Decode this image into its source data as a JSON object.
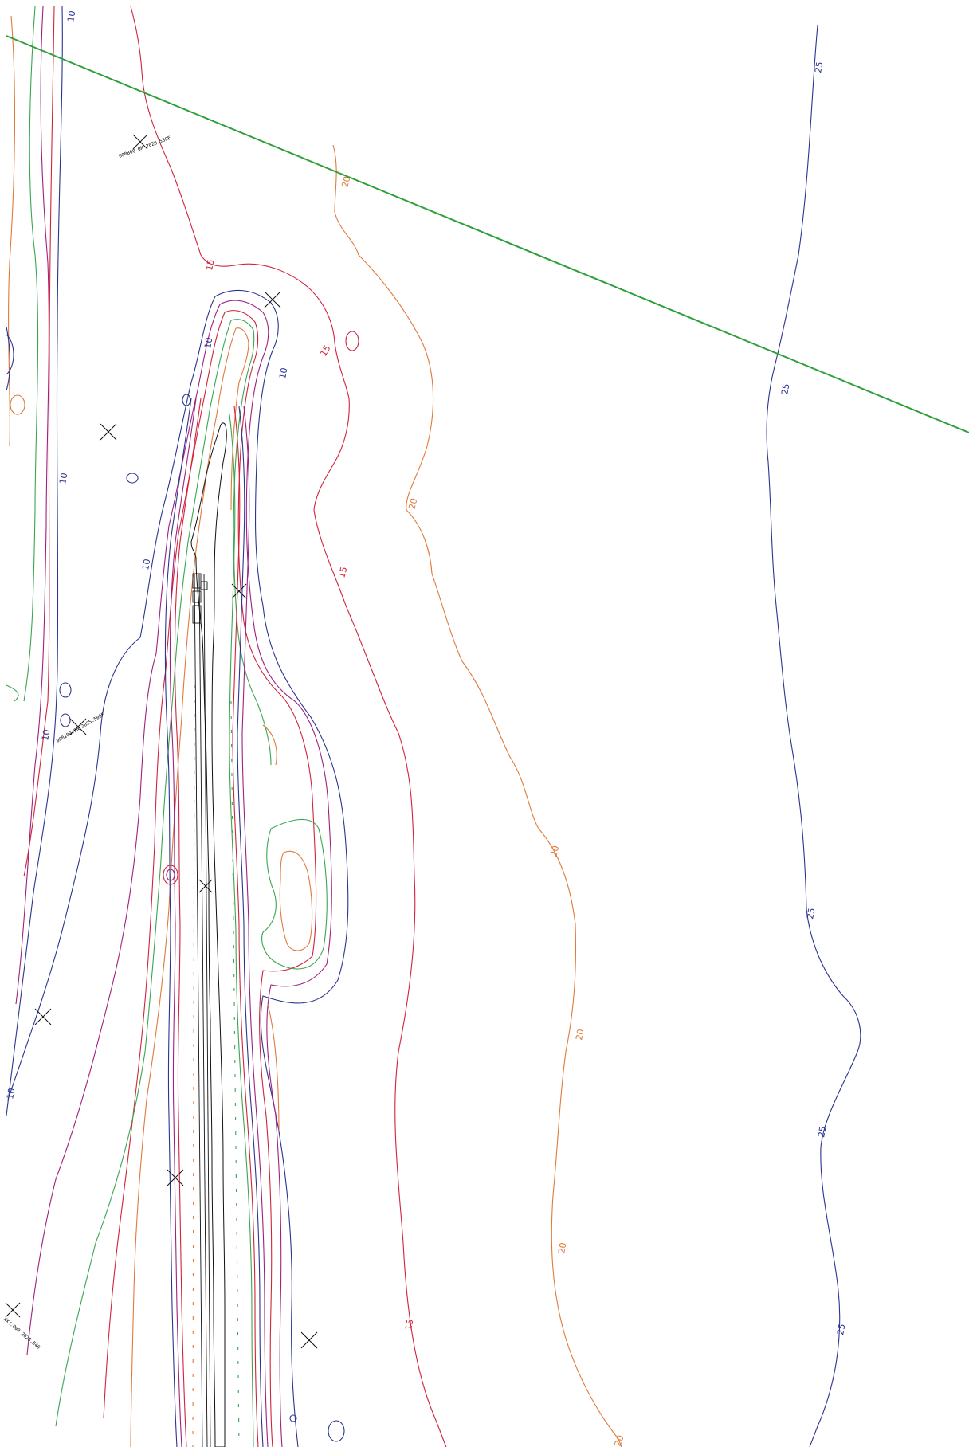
{
  "colors": {
    "contour_10": "#2b3590",
    "contour_15": "#d0243c",
    "contour_20": "#e07a3a",
    "contour_25": "#2b3590",
    "intermediate_green": "#3aa650",
    "intermediate_purple": "#a0207e",
    "section_line": "#2ea03a",
    "structure": "#111111"
  },
  "contour_labels": {
    "c10": [
      "10",
      "10",
      "10",
      "10",
      "10",
      "10",
      "10"
    ],
    "c15": [
      "15",
      "15",
      "15",
      "15"
    ],
    "c20": [
      "20",
      "20",
      "20",
      "20",
      "20",
      "20"
    ],
    "c25": [
      "25",
      "25",
      "25",
      "25",
      "25"
    ]
  },
  "coordinate_markers": {
    "m1": "000800.0N 2020.530E",
    "m2": "000100.0N 2025.500E",
    "m3": "XXX.000 2025.540"
  },
  "icons": {
    "survey_mark": "x-cross-icon",
    "rock_fill": "rock-hatch-pattern"
  }
}
